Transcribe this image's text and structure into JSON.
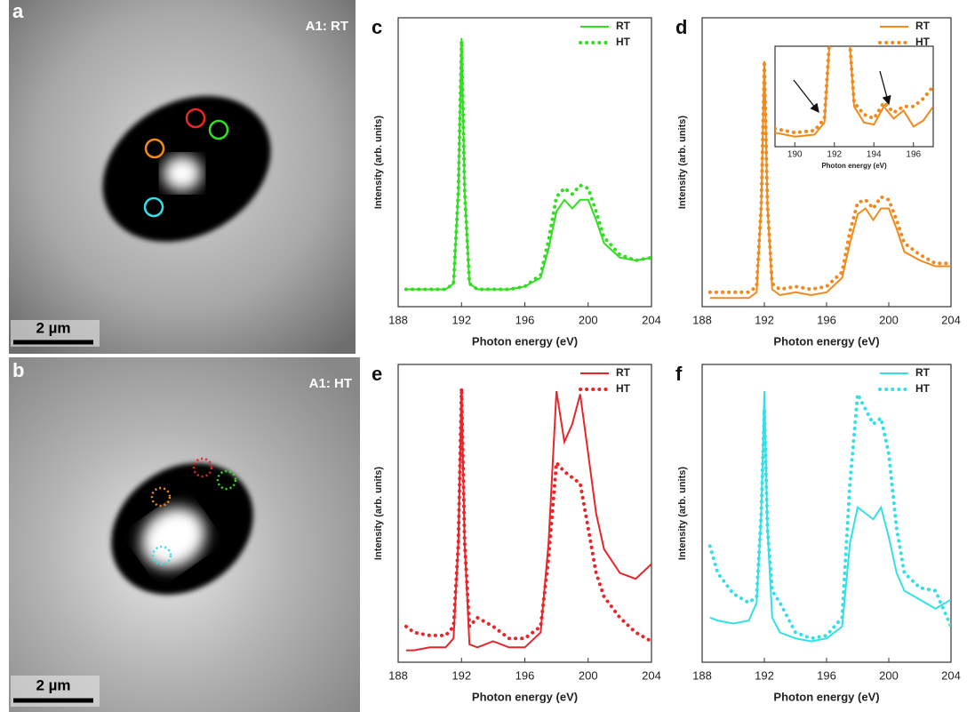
{
  "panels": [
    {
      "label": "a",
      "title": "A1: RT",
      "scale_bar": "2 µm"
    },
    {
      "label": "b",
      "title": "A1: HT",
      "scale_bar": "2 µm"
    }
  ],
  "chart_data": [
    {
      "type": "line",
      "label": "c",
      "xlabel": "Photon energy (eV)",
      "ylabel": "Intensity (arb. units)",
      "x": [
        188.5,
        189,
        190,
        191,
        191.5,
        191.8,
        192,
        192.2,
        192.5,
        193,
        194,
        195,
        196,
        197,
        197.5,
        198,
        198.5,
        199,
        199.5,
        200,
        200.5,
        201,
        202,
        203,
        204
      ],
      "xlim": [
        188,
        204
      ],
      "xticks": [
        188,
        192,
        196,
        200,
        204
      ],
      "ylim": [
        0,
        100
      ],
      "legend": "upper right",
      "series": [
        {
          "name": "RT",
          "color": "#33dd22",
          "style": "solid",
          "values": [
            6,
            6,
            6,
            6,
            8,
            40,
            93,
            40,
            8,
            6,
            6,
            6,
            7,
            10,
            20,
            33,
            37,
            34,
            37,
            37,
            30,
            22,
            17,
            16,
            17
          ]
        },
        {
          "name": "HT",
          "color": "#33dd22",
          "style": "dotted",
          "values": [
            6,
            6,
            6,
            6,
            8,
            40,
            92,
            40,
            8,
            6,
            6,
            6,
            7,
            11,
            23,
            38,
            41,
            39,
            42,
            41,
            33,
            24,
            18,
            16,
            17
          ]
        }
      ]
    },
    {
      "type": "line",
      "label": "d",
      "xlabel": "Photon energy (eV)",
      "ylabel": "Intensity (arb. units)",
      "x": [
        188.5,
        189,
        190,
        191,
        191.5,
        191.8,
        192,
        192.2,
        192.5,
        193,
        194,
        195,
        196,
        197,
        197.5,
        198,
        198.5,
        199,
        199.5,
        200,
        200.5,
        201,
        202,
        203,
        204
      ],
      "xlim": [
        188,
        204
      ],
      "xticks": [
        188,
        192,
        196,
        200,
        204
      ],
      "ylim": [
        0,
        100
      ],
      "legend": "upper right",
      "series": [
        {
          "name": "RT",
          "color": "#f08a1c",
          "style": "solid",
          "values": [
            3,
            3,
            3,
            3,
            5,
            35,
            85,
            35,
            6,
            4,
            5,
            4,
            5,
            10,
            22,
            32,
            34,
            30,
            34,
            34,
            27,
            19,
            16,
            14,
            14
          ]
        },
        {
          "name": "HT",
          "color": "#f08a1c",
          "style": "dotted",
          "values": [
            5,
            5,
            5,
            5,
            7,
            35,
            84,
            35,
            8,
            6,
            7,
            6,
            7,
            12,
            26,
            36,
            37,
            34,
            38,
            37,
            30,
            22,
            18,
            15,
            15
          ]
        }
      ]
    },
    {
      "type": "line",
      "xlabel": "Photon energy (eV)",
      "x": [
        189,
        190,
        191,
        191.5,
        192,
        192.5,
        193,
        193.5,
        194,
        194.5,
        195,
        195.5,
        196,
        196.5,
        197
      ],
      "xlim": [
        189,
        197
      ],
      "xticks": [
        190,
        192,
        194,
        196
      ],
      "ylim": [
        10,
        60
      ],
      "series": [
        {
          "color": "#f08a1c",
          "style": "solid",
          "values": [
            17,
            15,
            16,
            22,
            100,
            100,
            30,
            22,
            21,
            30,
            24,
            28,
            20,
            23,
            30
          ]
        },
        {
          "color": "#f08a1c",
          "style": "dotted",
          "values": [
            19,
            17,
            18,
            24,
            100,
            100,
            32,
            26,
            24,
            32,
            27,
            30,
            30,
            34,
            40
          ]
        }
      ]
    },
    {
      "type": "line",
      "label": "e",
      "xlabel": "Photon energy (eV)",
      "ylabel": "Intensity (arb. units)",
      "x": [
        188.5,
        189,
        190,
        191,
        191.5,
        191.8,
        192,
        192.2,
        192.5,
        193,
        194,
        195,
        196,
        197,
        197.5,
        198,
        198.5,
        199,
        199.5,
        200,
        200.5,
        201,
        202,
        203,
        204
      ],
      "xlim": [
        188,
        204
      ],
      "xticks": [
        188,
        192,
        196,
        200,
        204
      ],
      "ylim": [
        0,
        100
      ],
      "legend": "upper right",
      "series": [
        {
          "name": "RT",
          "color": "#e8262a",
          "style": "solid",
          "values": [
            4,
            4,
            5,
            5,
            8,
            40,
            91,
            40,
            6,
            5,
            7,
            5,
            5,
            10,
            40,
            91,
            74,
            80,
            90,
            70,
            50,
            38,
            30,
            28,
            33
          ]
        },
        {
          "name": "HT",
          "color": "#e8262a",
          "style": "dotted",
          "values": [
            12,
            10,
            9,
            9,
            12,
            40,
            92,
            40,
            12,
            15,
            12,
            8,
            8,
            12,
            35,
            67,
            64,
            62,
            60,
            45,
            30,
            22,
            15,
            10,
            7
          ]
        }
      ]
    },
    {
      "type": "line",
      "label": "f",
      "xlabel": "Photon energy (eV)",
      "ylabel": "Intensity (arb. units)",
      "x": [
        188.5,
        189,
        190,
        191,
        191.5,
        191.8,
        192,
        192.2,
        192.5,
        193,
        194,
        195,
        196,
        197,
        197.5,
        198,
        198.5,
        199,
        199.5,
        200,
        200.5,
        201,
        202,
        203,
        204
      ],
      "xlim": [
        188,
        204
      ],
      "xticks": [
        188,
        192,
        196,
        200,
        204
      ],
      "ylim": [
        0,
        100
      ],
      "legend": "upper right",
      "series": [
        {
          "name": "RT",
          "color": "#33e0e6",
          "style": "solid",
          "values": [
            15,
            14,
            13,
            14,
            20,
            50,
            91,
            45,
            15,
            10,
            8,
            7,
            8,
            12,
            40,
            52,
            50,
            48,
            52,
            42,
            30,
            24,
            21,
            18,
            21
          ]
        },
        {
          "name": "HT",
          "color": "#33e0e6",
          "style": "dotted",
          "values": [
            39,
            30,
            23,
            20,
            22,
            50,
            85,
            45,
            24,
            20,
            10,
            8,
            9,
            15,
            60,
            90,
            85,
            80,
            82,
            70,
            45,
            30,
            25,
            24,
            12
          ]
        }
      ]
    }
  ]
}
